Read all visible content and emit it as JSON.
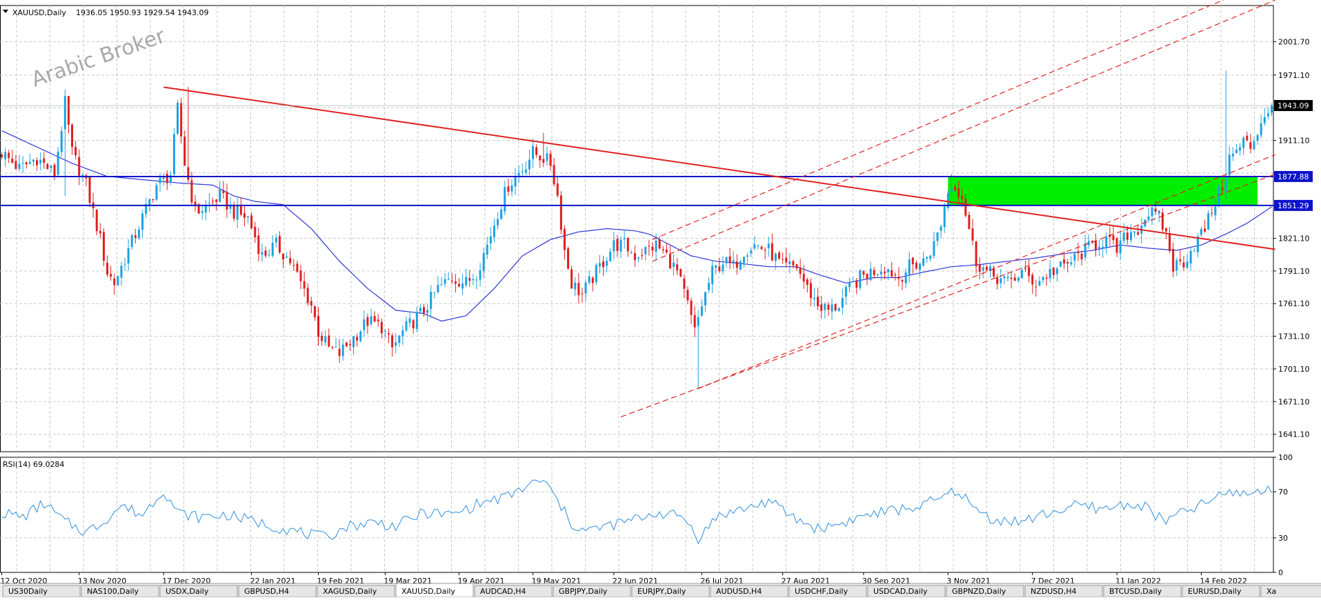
{
  "chart_title": {
    "symbol": "XAUUSD,Daily",
    "ohlc": "1936.05 1950.93 1929.54 1943.09"
  },
  "watermark": "Arabic Broker",
  "colors": {
    "bull": "#1ba1e2",
    "bear": "#e11d1d",
    "ma": "#2b35d6",
    "trend_red": "#e02020",
    "channel_red": "#e02020",
    "support_blue": "#0a13c9",
    "zone_green": "#00ee00",
    "grid": "#c9c9c9",
    "rsi_line": "#2f8fe0"
  },
  "chart_data": [
    {
      "type": "candlestick",
      "symbol": "XAUUSD",
      "timeframe": "Daily",
      "ylim": [
        1625,
        2035
      ],
      "y_ticks": [
        1641.1,
        1671.1,
        1701.1,
        1731.1,
        1761.1,
        1791.1,
        1821.1,
        1851.1,
        1881.1,
        1911.1,
        1941.1,
        1971.1,
        2001.7
      ],
      "y_tick_labels": [
        "1641.10",
        "1671.10",
        "1701.10",
        "1731.10",
        "1761.10",
        "1791.10",
        "1821.10",
        "",
        "",
        "1911.10",
        "",
        "1971.10",
        "2001.70"
      ],
      "x_labels": [
        "12 Oct 2020",
        "13 Nov 2020",
        "17 Dec 2020",
        "22 Jan 2021",
        "19 Feb 2021",
        "19 Mar 2021",
        "19 Apr 2021",
        "19 May 2021",
        "22 Jun 2021",
        "26 Jul 2021",
        "27 Aug 2021",
        "30 Sep 2021",
        "3 Nov 2021",
        "7 Dec 2021",
        "11 Jan 2022",
        "14 Feb 2022"
      ],
      "x_label_index": [
        0,
        22,
        46,
        71,
        90,
        109,
        130,
        151,
        174,
        199,
        222,
        245,
        269,
        293,
        317,
        341
      ],
      "num_bars": 362,
      "price_anchors": [
        [
          0,
          1900
        ],
        [
          5,
          1885
        ],
        [
          10,
          1895
        ],
        [
          15,
          1880
        ],
        [
          18,
          1945
        ],
        [
          20,
          1900
        ],
        [
          24,
          1870
        ],
        [
          28,
          1820
        ],
        [
          30,
          1790
        ],
        [
          32,
          1780
        ],
        [
          36,
          1810
        ],
        [
          40,
          1840
        ],
        [
          44,
          1870
        ],
        [
          48,
          1880
        ],
        [
          50,
          1940
        ],
        [
          52,
          1890
        ],
        [
          55,
          1845
        ],
        [
          58,
          1850
        ],
        [
          62,
          1860
        ],
        [
          66,
          1845
        ],
        [
          70,
          1840
        ],
        [
          74,
          1805
        ],
        [
          78,
          1815
        ],
        [
          82,
          1800
        ],
        [
          85,
          1780
        ],
        [
          88,
          1760
        ],
        [
          90,
          1735
        ],
        [
          93,
          1720
        ],
        [
          96,
          1715
        ],
        [
          100,
          1730
        ],
        [
          104,
          1745
        ],
        [
          108,
          1740
        ],
        [
          111,
          1720
        ],
        [
          114,
          1735
        ],
        [
          117,
          1745
        ],
        [
          120,
          1755
        ],
        [
          124,
          1775
        ],
        [
          128,
          1785
        ],
        [
          132,
          1780
        ],
        [
          135,
          1790
        ],
        [
          138,
          1815
        ],
        [
          141,
          1845
        ],
        [
          144,
          1870
        ],
        [
          148,
          1885
        ],
        [
          151,
          1900
        ],
        [
          154,
          1895
        ],
        [
          156,
          1890
        ],
        [
          158,
          1860
        ],
        [
          160,
          1810
        ],
        [
          162,
          1780
        ],
        [
          165,
          1770
        ],
        [
          168,
          1785
        ],
        [
          171,
          1800
        ],
        [
          174,
          1815
        ],
        [
          177,
          1815
        ],
        [
          180,
          1805
        ],
        [
          183,
          1810
        ],
        [
          186,
          1815
        ],
        [
          189,
          1805
        ],
        [
          192,
          1790
        ],
        [
          195,
          1760
        ],
        [
          197,
          1735
        ],
        [
          199,
          1760
        ],
        [
          202,
          1790
        ],
        [
          205,
          1800
        ],
        [
          208,
          1795
        ],
        [
          211,
          1810
        ],
        [
          214,
          1815
        ],
        [
          218,
          1810
        ],
        [
          222,
          1795
        ],
        [
          226,
          1795
        ],
        [
          229,
          1775
        ],
        [
          232,
          1760
        ],
        [
          235,
          1755
        ],
        [
          238,
          1760
        ],
        [
          241,
          1775
        ],
        [
          244,
          1785
        ],
        [
          247,
          1790
        ],
        [
          251,
          1795
        ],
        [
          255,
          1785
        ],
        [
          258,
          1795
        ],
        [
          262,
          1800
        ],
        [
          265,
          1815
        ],
        [
          267,
          1835
        ],
        [
          269,
          1865
        ],
        [
          271,
          1870
        ],
        [
          273,
          1860
        ],
        [
          275,
          1830
        ],
        [
          277,
          1800
        ],
        [
          280,
          1790
        ],
        [
          283,
          1785
        ],
        [
          286,
          1780
        ],
        [
          290,
          1790
        ],
        [
          294,
          1780
        ],
        [
          298,
          1790
        ],
        [
          302,
          1795
        ],
        [
          306,
          1805
        ],
        [
          310,
          1815
        ],
        [
          314,
          1820
        ],
        [
          317,
          1810
        ],
        [
          320,
          1825
        ],
        [
          323,
          1830
        ],
        [
          326,
          1845
        ],
        [
          329,
          1840
        ],
        [
          331,
          1825
        ],
        [
          333,
          1795
        ],
        [
          336,
          1800
        ],
        [
          339,
          1815
        ],
        [
          342,
          1830
        ],
        [
          345,
          1855
        ],
        [
          347,
          1870
        ],
        [
          349,
          1895
        ],
        [
          351,
          1900
        ],
        [
          353,
          1910
        ],
        [
          355,
          1905
        ],
        [
          357,
          1920
        ],
        [
          359,
          1935
        ],
        [
          361,
          1943.09
        ]
      ],
      "spikes": [
        [
          18,
          1958,
          1860
        ],
        [
          53,
          1960,
          null
        ],
        [
          154,
          1918,
          null
        ],
        [
          198,
          1755,
          1683
        ],
        [
          270,
          1880,
          null
        ],
        [
          348,
          1975,
          null
        ]
      ],
      "ma_period": 50,
      "ma_points": [
        [
          0,
          1920
        ],
        [
          10,
          1905
        ],
        [
          20,
          1890
        ],
        [
          30,
          1878
        ],
        [
          40,
          1875
        ],
        [
          50,
          1872
        ],
        [
          60,
          1870
        ],
        [
          66,
          1860
        ],
        [
          72,
          1855
        ],
        [
          80,
          1852
        ],
        [
          88,
          1830
        ],
        [
          96,
          1800
        ],
        [
          104,
          1775
        ],
        [
          112,
          1755
        ],
        [
          120,
          1752
        ],
        [
          125,
          1745
        ],
        [
          132,
          1750
        ],
        [
          140,
          1775
        ],
        [
          148,
          1805
        ],
        [
          156,
          1820
        ],
        [
          164,
          1827
        ],
        [
          172,
          1830
        ],
        [
          180,
          1828
        ],
        [
          184,
          1825
        ],
        [
          190,
          1815
        ],
        [
          196,
          1805
        ],
        [
          203,
          1800
        ],
        [
          210,
          1798
        ],
        [
          218,
          1795
        ],
        [
          226,
          1795
        ],
        [
          232,
          1788
        ],
        [
          240,
          1780
        ],
        [
          248,
          1785
        ],
        [
          255,
          1785
        ],
        [
          262,
          1790
        ],
        [
          270,
          1795
        ],
        [
          278,
          1797
        ],
        [
          286,
          1800
        ],
        [
          294,
          1803
        ],
        [
          302,
          1807
        ],
        [
          310,
          1810
        ],
        [
          318,
          1815
        ],
        [
          326,
          1812
        ],
        [
          334,
          1810
        ],
        [
          341,
          1815
        ],
        [
          348,
          1825
        ],
        [
          354,
          1835
        ],
        [
          361,
          1850
        ]
      ],
      "horizontal_lines": [
        {
          "price": 1877.88,
          "label": "1877.88"
        },
        {
          "price": 1851.29,
          "label": "1851.29"
        }
      ],
      "current_price": {
        "price": 1943.09,
        "label": "1943.09"
      },
      "zone": {
        "from_bar": 269,
        "to_bar": 357,
        "low": 1851.29,
        "high": 1877.88
      },
      "trendline": {
        "from": [
          46,
          1960
        ],
        "to": [
          362,
          1811
        ]
      },
      "channel_lines": [
        {
          "from": [
            185,
            1820
          ],
          "to": [
            362,
            2060
          ]
        },
        {
          "from": [
            185,
            1800
          ],
          "to": [
            362,
            2040
          ]
        },
        {
          "from": [
            198,
            1683
          ],
          "to": [
            362,
            1898
          ]
        },
        {
          "from": [
            176,
            1657
          ],
          "to": [
            362,
            1880
          ]
        }
      ]
    },
    {
      "type": "line",
      "indicator": "RSI",
      "label": "RSI(14) 69.0284",
      "ylim": [
        0,
        100
      ],
      "y_ticks": [
        0,
        30,
        70,
        100
      ],
      "anchors": [
        [
          0,
          52
        ],
        [
          6,
          48
        ],
        [
          12,
          60
        ],
        [
          18,
          44
        ],
        [
          24,
          35
        ],
        [
          28,
          42
        ],
        [
          34,
          58
        ],
        [
          40,
          50
        ],
        [
          46,
          72
        ],
        [
          50,
          52
        ],
        [
          56,
          48
        ],
        [
          64,
          50
        ],
        [
          72,
          44
        ],
        [
          80,
          38
        ],
        [
          86,
          34
        ],
        [
          92,
          30
        ],
        [
          98,
          40
        ],
        [
          106,
          44
        ],
        [
          112,
          40
        ],
        [
          120,
          52
        ],
        [
          128,
          50
        ],
        [
          136,
          60
        ],
        [
          144,
          66
        ],
        [
          150,
          76
        ],
        [
          154,
          80
        ],
        [
          158,
          62
        ],
        [
          162,
          42
        ],
        [
          166,
          36
        ],
        [
          172,
          40
        ],
        [
          180,
          46
        ],
        [
          186,
          52
        ],
        [
          194,
          48
        ],
        [
          198,
          30
        ],
        [
          204,
          50
        ],
        [
          212,
          56
        ],
        [
          218,
          62
        ],
        [
          226,
          46
        ],
        [
          232,
          38
        ],
        [
          238,
          42
        ],
        [
          246,
          50
        ],
        [
          254,
          54
        ],
        [
          262,
          58
        ],
        [
          268,
          66
        ],
        [
          272,
          72
        ],
        [
          276,
          56
        ],
        [
          282,
          46
        ],
        [
          290,
          44
        ],
        [
          298,
          52
        ],
        [
          306,
          58
        ],
        [
          314,
          55
        ],
        [
          320,
          60
        ],
        [
          326,
          56
        ],
        [
          330,
          44
        ],
        [
          336,
          52
        ],
        [
          342,
          60
        ],
        [
          346,
          66
        ],
        [
          350,
          70
        ],
        [
          354,
          68
        ],
        [
          358,
          72
        ],
        [
          361,
          69.03
        ]
      ]
    }
  ],
  "tabs": [
    "US30Daily",
    "NAS100,Daily",
    "USDX,Daily",
    "GBPUSD,H4",
    "XAGUSD,Daily",
    "XAUUSD,Daily",
    "AUDCAD,H4",
    "GBPJPY,Daily",
    "EURJPY,Daily",
    "AUDUSD,H4",
    "USDCHF,Daily",
    "USDCAD,Daily",
    "GBPNZD,Daily",
    "NZDUSD,H4",
    "BTCUSD,Daily",
    "EURUSD,Daily",
    "Xa"
  ],
  "active_tab_index": 5
}
